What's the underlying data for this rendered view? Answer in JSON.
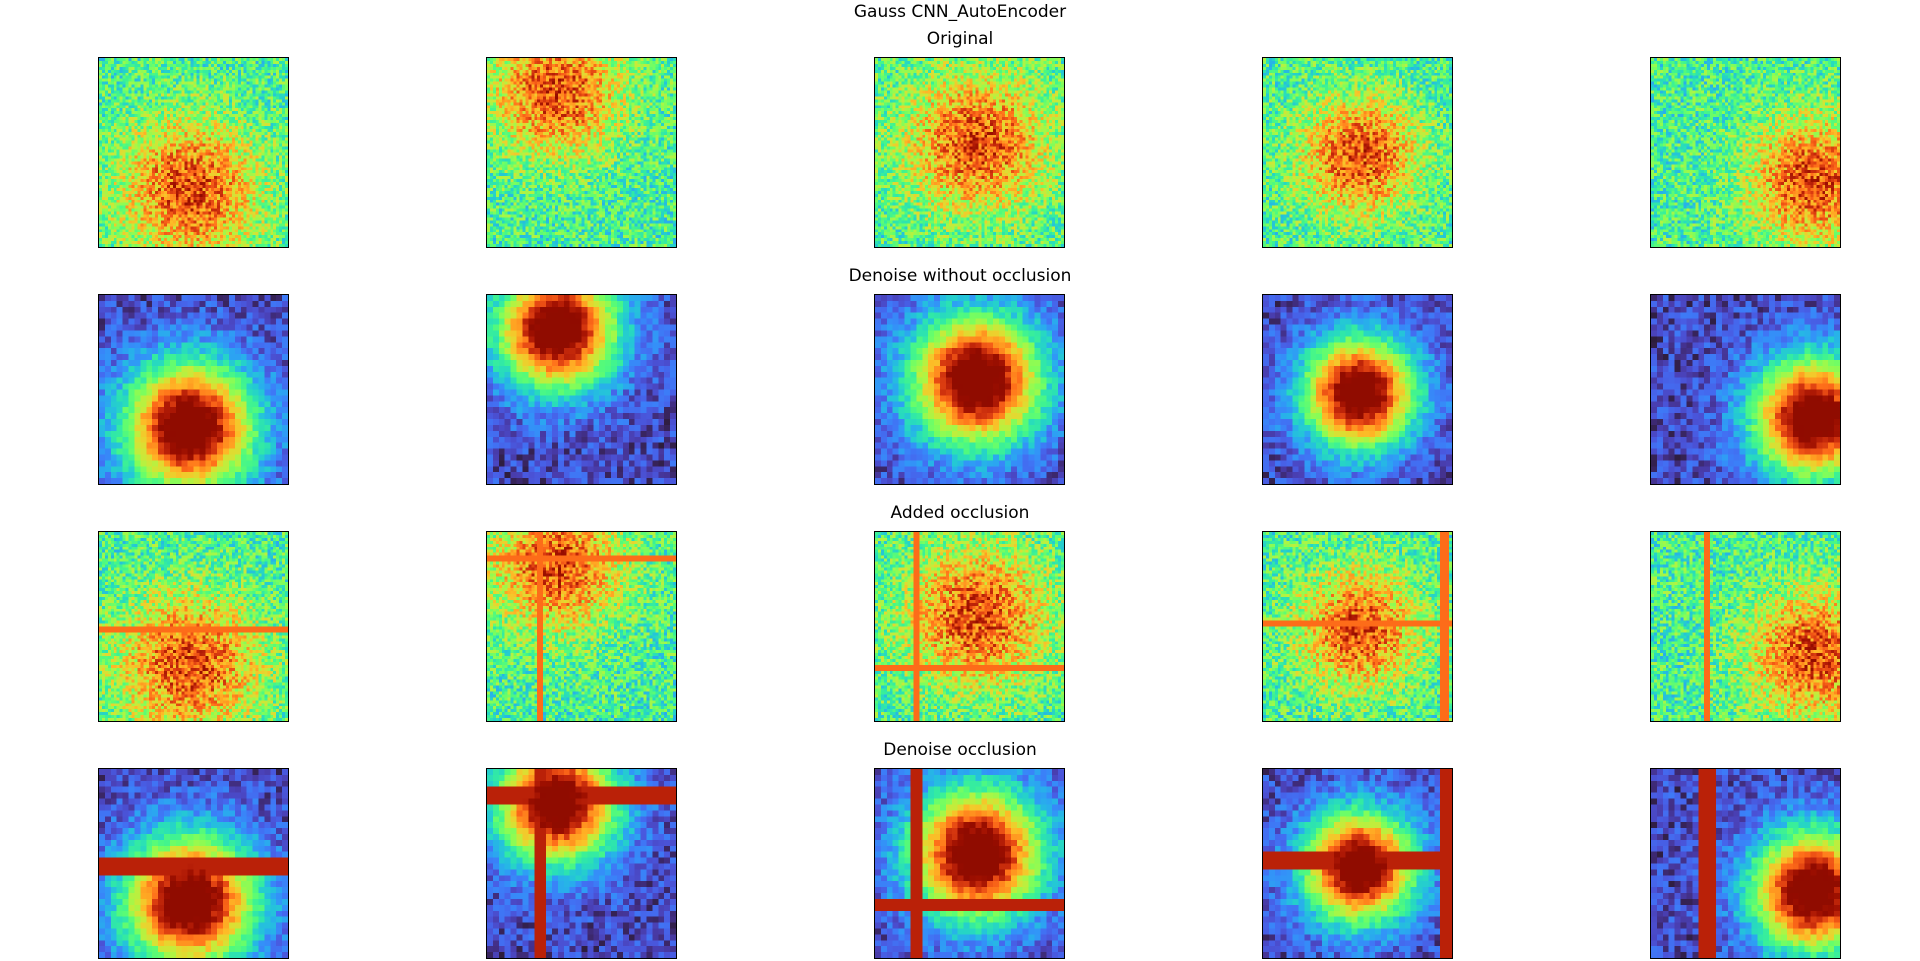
{
  "figure": {
    "title": "Gauss CNN_AutoEncoder",
    "colormap": "turbo",
    "rows": [
      {
        "title": "Original",
        "kind": "noisy",
        "panels": [
          {
            "center": [
              0.48,
              0.7
            ],
            "sigma": 0.26,
            "occlusion": {
              "h": [],
              "v": []
            }
          },
          {
            "center": [
              0.37,
              0.18
            ],
            "sigma": 0.24,
            "occlusion": {
              "h": [],
              "v": []
            }
          },
          {
            "center": [
              0.54,
              0.45
            ],
            "sigma": 0.26,
            "occlusion": {
              "h": [],
              "v": []
            }
          },
          {
            "center": [
              0.51,
              0.52
            ],
            "sigma": 0.22,
            "occlusion": {
              "h": [],
              "v": []
            }
          },
          {
            "center": [
              0.86,
              0.65
            ],
            "sigma": 0.24,
            "occlusion": {
              "h": [],
              "v": []
            }
          }
        ]
      },
      {
        "title": "Denoise without occlusion",
        "kind": "denoised",
        "panels": [
          {
            "center": [
              0.48,
              0.7
            ],
            "sigma": 0.26,
            "occlusion": {
              "h": [],
              "v": []
            }
          },
          {
            "center": [
              0.37,
              0.18
            ],
            "sigma": 0.24,
            "occlusion": {
              "h": [],
              "v": []
            }
          },
          {
            "center": [
              0.54,
              0.45
            ],
            "sigma": 0.26,
            "occlusion": {
              "h": [],
              "v": []
            }
          },
          {
            "center": [
              0.51,
              0.52
            ],
            "sigma": 0.22,
            "occlusion": {
              "h": [],
              "v": []
            }
          },
          {
            "center": [
              0.86,
              0.65
            ],
            "sigma": 0.24,
            "occlusion": {
              "h": [],
              "v": []
            }
          }
        ]
      },
      {
        "title": "Added occlusion",
        "kind": "noisy",
        "panels": [
          {
            "center": [
              0.48,
              0.7
            ],
            "sigma": 0.26,
            "occlusion": {
              "h": [
                0.52
              ],
              "v": []
            }
          },
          {
            "center": [
              0.37,
              0.18
            ],
            "sigma": 0.24,
            "occlusion": {
              "h": [
                0.14
              ],
              "v": [
                0.28
              ]
            }
          },
          {
            "center": [
              0.54,
              0.45
            ],
            "sigma": 0.26,
            "occlusion": {
              "h": [
                0.72
              ],
              "v": [
                0.22
              ]
            }
          },
          {
            "center": [
              0.51,
              0.52
            ],
            "sigma": 0.22,
            "occlusion": {
              "h": [
                0.48
              ],
              "v": [
                0.96
              ]
            }
          },
          {
            "center": [
              0.86,
              0.65
            ],
            "sigma": 0.24,
            "occlusion": {
              "h": [],
              "v": [
                0.3
              ]
            }
          }
        ]
      },
      {
        "title": "Denoise occlusion",
        "kind": "denoised",
        "panels": [
          {
            "center": [
              0.48,
              0.7
            ],
            "sigma": 0.26,
            "occlusion": {
              "h": [
                0.52
              ],
              "v": []
            }
          },
          {
            "center": [
              0.37,
              0.18
            ],
            "sigma": 0.24,
            "occlusion": {
              "h": [
                0.14
              ],
              "v": [
                0.28
              ]
            }
          },
          {
            "center": [
              0.54,
              0.45
            ],
            "sigma": 0.26,
            "occlusion": {
              "h": [
                0.72
              ],
              "v": [
                0.22
              ]
            }
          },
          {
            "center": [
              0.51,
              0.52
            ],
            "sigma": 0.22,
            "occlusion": {
              "h": [
                0.48
              ],
              "v": [
                0.96
              ]
            }
          },
          {
            "center": [
              0.86,
              0.65
            ],
            "sigma": 0.24,
            "occlusion": {
              "h": [],
              "v": [
                0.3
              ]
            }
          }
        ]
      }
    ]
  }
}
